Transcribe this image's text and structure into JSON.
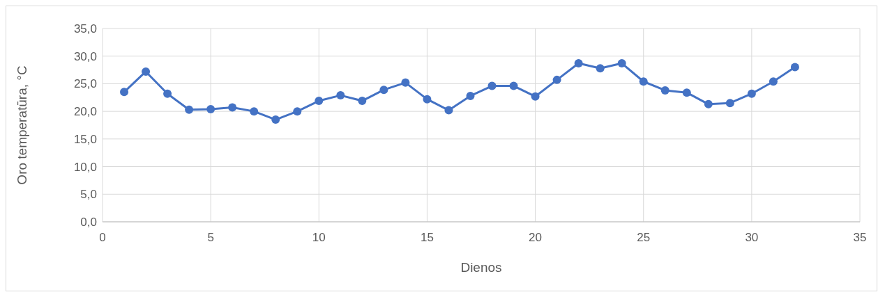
{
  "chart_data": {
    "type": "line",
    "xlabel": "Dienos",
    "ylabel": "Oro temperatūra, °C",
    "x": [
      1,
      2,
      3,
      4,
      5,
      6,
      7,
      8,
      9,
      10,
      11,
      12,
      13,
      14,
      15,
      16,
      17,
      18,
      19,
      20,
      21,
      22,
      23,
      24,
      25,
      26,
      27,
      28,
      29,
      30,
      31,
      32
    ],
    "series": [
      {
        "color": "#4472c4",
        "values": [
          23.5,
          27.2,
          23.2,
          20.3,
          20.4,
          20.7,
          20.0,
          18.5,
          20.0,
          21.9,
          22.9,
          21.9,
          23.9,
          25.2,
          22.2,
          20.2,
          22.8,
          24.6,
          24.6,
          22.7,
          25.7,
          28.7,
          27.8,
          28.7,
          25.4,
          23.8,
          23.4,
          21.3,
          21.5,
          23.2,
          25.4,
          28.0
        ]
      }
    ],
    "xlim": [
      0,
      35
    ],
    "xticks": [
      0,
      5,
      10,
      15,
      20,
      25,
      30,
      35
    ],
    "ylim": [
      0,
      35
    ],
    "yticks": [
      {
        "value": 0,
        "label": "0,0"
      },
      {
        "value": 5,
        "label": "5,0"
      },
      {
        "value": 10,
        "label": "10,0"
      },
      {
        "value": 15,
        "label": "15,0"
      },
      {
        "value": 20,
        "label": "20,0"
      },
      {
        "value": 25,
        "label": "25,0"
      },
      {
        "value": 30,
        "label": "30,0"
      },
      {
        "value": 35,
        "label": "35,0"
      }
    ],
    "grid": true,
    "marker": "circle",
    "line_style": "solid"
  }
}
